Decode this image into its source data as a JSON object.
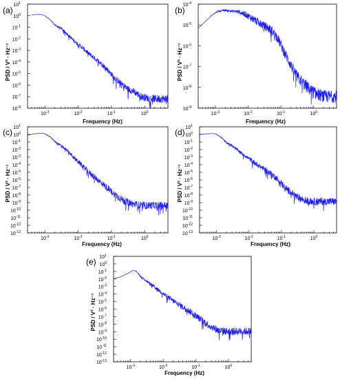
{
  "figure": {
    "panels": [
      {
        "id": "a",
        "label": "(a)",
        "xlabel": "Frequency (Hz)",
        "ylabel": "PSD / V² · Hz⁻¹"
      },
      {
        "id": "b",
        "label": "(b)",
        "xlabel": "Frequency (Hz)",
        "ylabel": "PSD / V² · Hz⁻¹"
      },
      {
        "id": "c",
        "label": "(c)",
        "xlabel": "Frequency (Hz)",
        "ylabel": "PSD / V² · Hz⁻¹"
      },
      {
        "id": "d",
        "label": "(d)",
        "xlabel": "Frequency (Hz)",
        "ylabel": "PSD / V² · Hz⁻¹"
      },
      {
        "id": "e",
        "label": "(e)",
        "xlabel": "Frequency (Hz)",
        "ylabel": "PSD / V² · Hz⁻¹"
      }
    ]
  },
  "colors": {
    "series": "#1a1aff",
    "axis": "#000000"
  },
  "chart_data": [
    {
      "type": "line",
      "panel": "(a)",
      "title": "",
      "xlabel": "Frequency (Hz)",
      "ylabel": "PSD / V² · Hz⁻¹",
      "xscale": "log",
      "yscale": "log",
      "xlim": [
        0.0003,
        5
      ],
      "ylim": [
        1e-08,
        10
      ],
      "xticks": [
        0.001,
        0.01,
        0.1,
        1
      ],
      "yticks": [
        1e-08,
        1e-07,
        1e-06,
        1e-05,
        0.0001,
        0.001,
        0.01,
        0.1,
        1,
        10
      ],
      "grid": false,
      "legend": "none",
      "series": [
        {
          "x": [
            0.0004,
            0.0006,
            0.0008,
            0.001,
            0.0015,
            0.002,
            0.003,
            0.005,
            0.008,
            0.012,
            0.02,
            0.03,
            0.05,
            0.08,
            0.12,
            0.2,
            0.3,
            0.5,
            0.8,
            1.2,
            2,
            3,
            5
          ],
          "y": [
            1.2,
            1.3,
            1.25,
            1.0,
            0.4,
            0.15,
            0.08,
            0.02,
            0.005,
            0.002,
            0.0005,
            0.0002,
            6e-05,
            1.5e-05,
            4e-06,
            1e-06,
            4e-07,
            2e-07,
            8e-08,
            6e-08,
            5e-08,
            5e-08,
            5e-08
          ],
          "noise_decades": [
            0,
            0,
            0,
            0,
            0.05,
            0.1,
            0.2,
            0.25,
            0.3,
            0.35,
            0.4,
            0.4,
            0.45,
            0.5,
            0.5,
            0.55,
            0.6,
            0.6,
            0.65,
            0.65,
            0.7,
            0.7,
            0.7
          ]
        }
      ]
    },
    {
      "type": "line",
      "panel": "(b)",
      "title": "",
      "xlabel": "Frequency (Hz)",
      "ylabel": "PSD / V² · Hz⁻¹",
      "xscale": "log",
      "yscale": "log",
      "xlim": [
        0.0003,
        5
      ],
      "ylim": [
        1e-09,
        0.0001
      ],
      "xticks": [
        0.001,
        0.01,
        0.1,
        1
      ],
      "yticks": [
        1e-09,
        1e-08,
        1e-07,
        1e-06,
        1e-05,
        0.0001
      ],
      "grid": false,
      "legend": "none",
      "series": [
        {
          "x": [
            0.0003,
            0.0005,
            0.0008,
            0.0012,
            0.002,
            0.003,
            0.005,
            0.008,
            0.012,
            0.02,
            0.03,
            0.05,
            0.08,
            0.12,
            0.2,
            0.3,
            0.5,
            0.8,
            1.2,
            2,
            3,
            5
          ],
          "y": [
            7e-06,
            1.5e-05,
            3e-05,
            4.5e-05,
            5e-05,
            4.5e-05,
            4e-05,
            3e-05,
            2e-05,
            1.2e-05,
            8e-06,
            5e-06,
            2e-06,
            5e-07,
            1e-07,
            3e-08,
            1.2e-08,
            6e-09,
            4e-09,
            3e-09,
            3e-09,
            3e-09
          ],
          "noise_decades": [
            0,
            0,
            0.02,
            0.05,
            0.08,
            0.12,
            0.2,
            0.3,
            0.35,
            0.4,
            0.4,
            0.45,
            0.45,
            0.5,
            0.5,
            0.55,
            0.6,
            0.6,
            0.6,
            0.6,
            0.6,
            0.6
          ]
        }
      ]
    },
    {
      "type": "line",
      "panel": "(c)",
      "title": "",
      "xlabel": "Frequency (Hz)",
      "ylabel": "PSD / V² · Hz⁻¹",
      "xscale": "log",
      "yscale": "log",
      "xlim": [
        0.0003,
        5
      ],
      "ylim": [
        1e-13,
        10
      ],
      "xticks": [
        0.001,
        0.01,
        0.1,
        1
      ],
      "yticks": [
        1e-13,
        1e-12,
        1e-11,
        1e-10,
        1e-09,
        1e-08,
        1e-07,
        1e-06,
        1e-05,
        0.0001,
        0.001,
        0.01,
        0.1,
        1,
        10
      ],
      "grid": false,
      "legend": "none",
      "series": [
        {
          "x": [
            0.0003,
            0.0005,
            0.0008,
            0.001,
            0.0015,
            0.002,
            0.003,
            0.005,
            0.008,
            0.012,
            0.02,
            0.03,
            0.05,
            0.08,
            0.12,
            0.2,
            0.3,
            0.5,
            0.8,
            1.2,
            2,
            3,
            5
          ],
          "y": [
            0.8,
            1.2,
            1.5,
            1.2,
            0.4,
            0.1,
            0.03,
            0.005,
            0.0005,
            0.0001,
            1e-05,
            2e-06,
            3e-07,
            5e-08,
            1e-08,
            2e-09,
            8e-10,
            4e-10,
            3e-10,
            3e-10,
            3e-10,
            3e-10,
            3e-10
          ],
          "noise_decades": [
            0,
            0,
            0,
            0.05,
            0.1,
            0.2,
            0.3,
            0.4,
            0.5,
            0.6,
            0.7,
            0.8,
            0.8,
            0.9,
            0.9,
            1.0,
            1.0,
            1.0,
            1.0,
            1.0,
            1.0,
            1.0,
            1.0
          ]
        }
      ]
    },
    {
      "type": "line",
      "panel": "(d)",
      "title": "",
      "xlabel": "Frequency (Hz)",
      "ylabel": "PSD / V² · Hz⁻¹",
      "xscale": "log",
      "yscale": "log",
      "xlim": [
        0.0003,
        5
      ],
      "ylim": [
        1e-13,
        10
      ],
      "xticks": [
        0.001,
        0.01,
        0.1,
        1
      ],
      "yticks": [
        1e-13,
        1e-12,
        1e-11,
        1e-10,
        1e-09,
        1e-08,
        1e-07,
        1e-06,
        1e-05,
        0.0001,
        0.001,
        0.01,
        0.1,
        1,
        10
      ],
      "grid": false,
      "legend": "none",
      "series": [
        {
          "x": [
            0.0003,
            0.0005,
            0.0008,
            0.001,
            0.0015,
            0.002,
            0.003,
            0.005,
            0.008,
            0.012,
            0.02,
            0.03,
            0.05,
            0.08,
            0.12,
            0.2,
            0.3,
            0.5,
            0.8,
            1.2,
            2,
            3,
            5
          ],
          "y": [
            1.0,
            1.2,
            1.3,
            1.0,
            0.3,
            0.08,
            0.03,
            0.005,
            0.001,
            0.0003,
            6e-05,
            2e-05,
            4e-06,
            8e-07,
            1e-07,
            1.5e-08,
            4e-09,
            1.5e-09,
            1e-09,
            1e-09,
            1e-09,
            1e-09,
            1e-09
          ],
          "noise_decades": [
            0,
            0,
            0,
            0.05,
            0.1,
            0.2,
            0.3,
            0.4,
            0.5,
            0.6,
            0.6,
            0.7,
            0.8,
            0.8,
            0.9,
            0.9,
            1.0,
            1.0,
            1.0,
            1.0,
            1.0,
            1.0,
            1.0
          ]
        }
      ]
    },
    {
      "type": "line",
      "panel": "(e)",
      "title": "",
      "xlabel": "Frequency (Hz)",
      "ylabel": "PSD / V² · Hz⁻¹",
      "xscale": "log",
      "yscale": "log",
      "xlim": [
        0.0003,
        5
      ],
      "ylim": [
        1e-13,
        10
      ],
      "xticks": [
        0.001,
        0.01,
        0.1,
        1
      ],
      "yticks": [
        1e-13,
        1e-12,
        1e-11,
        1e-10,
        1e-09,
        1e-08,
        1e-07,
        1e-06,
        1e-05,
        0.0001,
        0.001,
        0.01,
        0.1,
        1,
        10
      ],
      "grid": false,
      "legend": "none",
      "series": [
        {
          "x": [
            0.0003,
            0.0005,
            0.0008,
            0.0012,
            0.0015,
            0.002,
            0.003,
            0.005,
            0.008,
            0.012,
            0.02,
            0.03,
            0.05,
            0.08,
            0.12,
            0.2,
            0.3,
            0.5,
            0.8,
            1.2,
            2,
            3,
            5
          ],
          "y": [
            0.01,
            0.02,
            0.05,
            0.15,
            0.1,
            0.02,
            0.005,
            0.001,
            0.0002,
            5e-05,
            1e-05,
            3e-06,
            8e-07,
            2e-07,
            5e-08,
            1e-08,
            3e-09,
            1e-09,
            8e-10,
            8e-10,
            8e-10,
            8e-10,
            8e-10
          ],
          "noise_decades": [
            0,
            0,
            0,
            0,
            0.1,
            0.2,
            0.3,
            0.4,
            0.5,
            0.6,
            0.7,
            0.8,
            0.8,
            0.9,
            0.9,
            1.0,
            1.0,
            1.0,
            1.0,
            1.0,
            1.0,
            1.0,
            1.0
          ]
        }
      ]
    }
  ]
}
